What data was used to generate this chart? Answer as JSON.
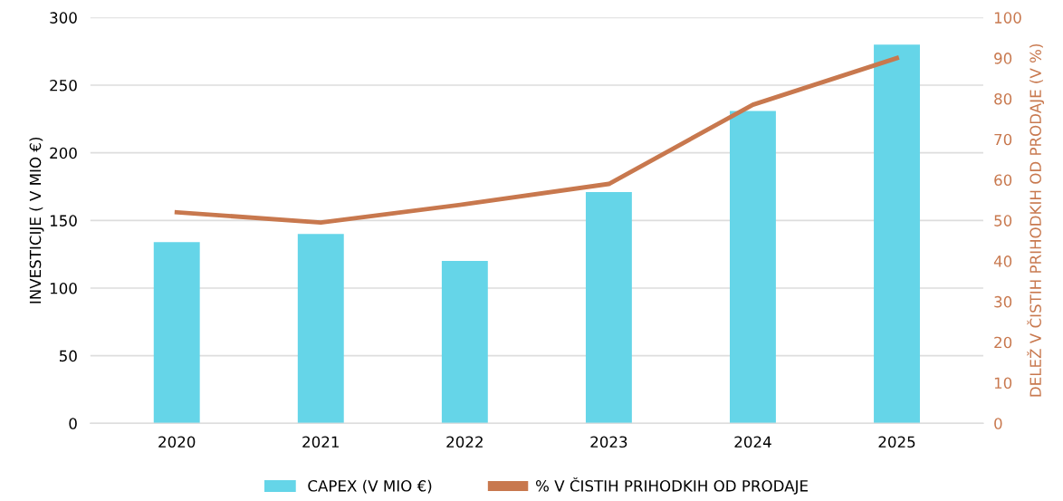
{
  "chart_data": {
    "type": "bar",
    "ylabel": "INVESTICIJE ( V MIO €)",
    "y2label": "DELEŽ V ČISTIH PRIHODKIH OD PRODAJE (V %)",
    "categories": [
      "2020",
      "2021",
      "2022",
      "2023",
      "2024",
      "2025"
    ],
    "series": [
      {
        "name": "CAPEX (V MIO €)",
        "color": "#65d5e8",
        "values": [
          134,
          140,
          120,
          171,
          231,
          280
        ]
      },
      {
        "name": "% V ČISTIH PRIHODKIH OD PRODAJE",
        "type": "line",
        "axis": "y2",
        "color": "#c8784e",
        "values": [
          52,
          49.5,
          54,
          59,
          78.5,
          90
        ]
      }
    ],
    "ylim": [
      0,
      300
    ],
    "yticks": [
      0,
      50,
      100,
      150,
      200,
      250,
      300
    ],
    "y2lim": [
      0,
      100
    ],
    "y2ticks": [
      0,
      10,
      20,
      30,
      40,
      50,
      60,
      70,
      80,
      90,
      100
    ],
    "grid": "y",
    "legend": "bottom",
    "marker": "none",
    "line_style": "solid"
  }
}
